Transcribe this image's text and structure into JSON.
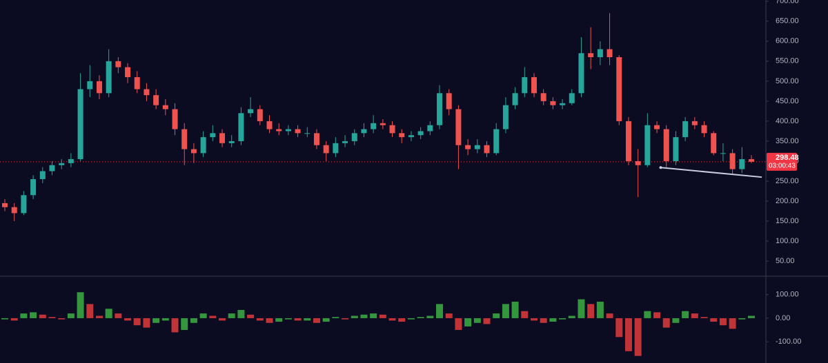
{
  "chart_data": {
    "type": "candlestick",
    "open": [
      195,
      185,
      170,
      215,
      255,
      275,
      290,
      295,
      305,
      480,
      500,
      470,
      550,
      535,
      510,
      480,
      465,
      440,
      430,
      380,
      330,
      320,
      360,
      370,
      345,
      350,
      420,
      430,
      400,
      380,
      375,
      380,
      370,
      370,
      340,
      320,
      345,
      350,
      370,
      380,
      395,
      390,
      370,
      360,
      365,
      375,
      390,
      470,
      430,
      340,
      330,
      340,
      320,
      380,
      440,
      470,
      510,
      470,
      450,
      440,
      445,
      470,
      570,
      560,
      580,
      560,
      400,
      300,
      290,
      390,
      380,
      300,
      360,
      400,
      390,
      370,
      320,
      320,
      280,
      305
    ],
    "high": [
      205,
      195,
      225,
      265,
      285,
      300,
      305,
      320,
      520,
      540,
      515,
      580,
      560,
      545,
      525,
      495,
      480,
      455,
      445,
      395,
      345,
      375,
      390,
      380,
      365,
      435,
      460,
      440,
      415,
      395,
      390,
      390,
      385,
      380,
      350,
      360,
      365,
      380,
      395,
      415,
      405,
      400,
      380,
      375,
      385,
      400,
      490,
      480,
      440,
      355,
      355,
      350,
      395,
      460,
      485,
      535,
      520,
      480,
      460,
      455,
      480,
      610,
      635,
      600,
      670,
      565,
      410,
      330,
      420,
      400,
      390,
      375,
      410,
      410,
      400,
      375,
      345,
      330,
      335,
      315
    ],
    "low": [
      175,
      150,
      165,
      205,
      245,
      265,
      280,
      285,
      300,
      460,
      455,
      460,
      520,
      495,
      470,
      450,
      430,
      415,
      365,
      290,
      295,
      310,
      350,
      335,
      335,
      340,
      410,
      390,
      370,
      365,
      365,
      360,
      360,
      330,
      300,
      310,
      335,
      340,
      360,
      370,
      380,
      360,
      345,
      350,
      355,
      365,
      380,
      415,
      280,
      315,
      320,
      310,
      315,
      370,
      430,
      460,
      460,
      440,
      430,
      430,
      440,
      460,
      530,
      540,
      540,
      390,
      290,
      210,
      285,
      370,
      285,
      290,
      350,
      380,
      360,
      315,
      300,
      268,
      270,
      295
    ],
    "close": [
      185,
      170,
      215,
      255,
      275,
      290,
      295,
      305,
      480,
      500,
      470,
      550,
      535,
      510,
      480,
      465,
      440,
      430,
      380,
      330,
      320,
      360,
      370,
      345,
      350,
      420,
      430,
      400,
      380,
      375,
      380,
      370,
      370,
      340,
      320,
      345,
      350,
      370,
      380,
      395,
      390,
      370,
      360,
      365,
      375,
      390,
      470,
      430,
      340,
      330,
      340,
      320,
      380,
      440,
      470,
      510,
      470,
      450,
      440,
      445,
      470,
      570,
      560,
      580,
      560,
      400,
      300,
      290,
      390,
      380,
      300,
      360,
      400,
      390,
      370,
      320,
      320,
      280,
      305,
      298.48
    ],
    "up_color": "#26a69a",
    "down_color": "#ef5350",
    "ylim": [
      14,
      703
    ],
    "yticks": [
      {
        "value": 700,
        "label": "700.00"
      },
      {
        "value": 650,
        "label": "650.00"
      },
      {
        "value": 600,
        "label": "600.00"
      },
      {
        "value": 550,
        "label": "550.00"
      },
      {
        "value": 500,
        "label": "500.00"
      },
      {
        "value": 450,
        "label": "450.00"
      },
      {
        "value": 400,
        "label": "400.00"
      },
      {
        "value": 350,
        "label": "350.00"
      },
      {
        "value": 300,
        "label": "300.00"
      },
      {
        "value": 250,
        "label": "250.00"
      },
      {
        "value": 200,
        "label": "200.00"
      },
      {
        "value": 150,
        "label": "150.00"
      },
      {
        "value": 100,
        "label": "100.00"
      },
      {
        "value": 50,
        "label": "50.00"
      }
    ],
    "current_price": 298.48,
    "countdown": "03:00:43",
    "price_label_color": "#f23645",
    "trendline": {
      "x": [
        69.4,
        80.1
      ],
      "y": [
        284,
        260
      ],
      "color": "#c8cde0"
    },
    "histogram": {
      "values": [
        -5,
        -10,
        20,
        25,
        15,
        5,
        -5,
        20,
        110,
        60,
        10,
        40,
        20,
        -10,
        -30,
        -40,
        -20,
        -10,
        -60,
        -50,
        -20,
        20,
        10,
        -10,
        20,
        35,
        15,
        -10,
        -20,
        -15,
        -5,
        -10,
        -10,
        -20,
        -15,
        5,
        -5,
        10,
        15,
        20,
        15,
        -10,
        -15,
        -5,
        5,
        10,
        60,
        20,
        -50,
        -35,
        -20,
        -25,
        20,
        60,
        70,
        30,
        -10,
        -20,
        -15,
        -5,
        10,
        80,
        60,
        70,
        20,
        -80,
        -140,
        -160,
        30,
        25,
        -40,
        -20,
        30,
        20,
        5,
        -15,
        -30,
        -45,
        -5,
        10
      ],
      "up_color": "#3cb043",
      "down_color": "#e03b3b",
      "ylim": [
        -190,
        175
      ],
      "yticks": [
        {
          "value": 100,
          "label": "100.00"
        },
        {
          "value": 0,
          "label": "0.00"
        },
        {
          "value": -100,
          "label": "-100.00"
        }
      ]
    }
  }
}
